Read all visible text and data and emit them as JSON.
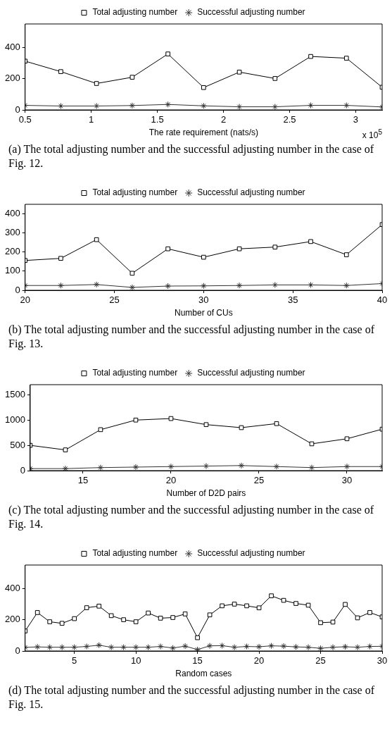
{
  "chart_data": [
    {
      "type": "line",
      "xlabel": "The rate requirement (nats/s)",
      "x": [
        0.5,
        0.77,
        1.04,
        1.31,
        1.58,
        1.85,
        2.12,
        2.39,
        2.66,
        2.93,
        3.2
      ],
      "xlim": [
        0.5,
        3.2
      ],
      "xticks": [
        0.5,
        1,
        1.5,
        2,
        2.5,
        3
      ],
      "ylim": [
        0,
        550
      ],
      "yticks": [
        0,
        200,
        400
      ],
      "grid": false,
      "legend": "top",
      "line_style": "solid",
      "series": [
        {
          "name": "Total adjusting number",
          "color": "#000000",
          "marker": "square",
          "values": [
            312,
            245,
            169,
            209,
            358,
            143,
            242,
            201,
            342,
            331,
            145
          ]
        },
        {
          "name": "Successful adjusting number",
          "color": "#333333",
          "marker": "cross",
          "values": [
            29,
            25,
            25,
            28,
            35,
            26,
            20,
            20,
            29,
            29,
            19
          ]
        }
      ],
      "annotations": [
        "(a) The total adjusting number and the successful adjusting number in the case of Fig. 12.",
        "x 10$^{5}$"
      ]
    },
    {
      "type": "line",
      "xlabel": "Number of CUs",
      "x": [
        20,
        22,
        24,
        26,
        28,
        30,
        32,
        34,
        36,
        38,
        40
      ],
      "xlim": [
        20,
        40
      ],
      "xticks": [
        20,
        25,
        30,
        35,
        40
      ],
      "ylim": [
        0,
        450
      ],
      "yticks": [
        0,
        100,
        200,
        300,
        400
      ],
      "grid": false,
      "legend": "top",
      "line_style": "solid",
      "series": [
        {
          "name": "Total adjusting number",
          "color": "#000000",
          "marker": "square",
          "values": [
            156,
            167,
            265,
            89,
            217,
            173,
            217,
            226,
            255,
            186,
            344
          ]
        },
        {
          "name": "Successful adjusting number",
          "color": "#333333",
          "marker": "cross",
          "values": [
            25,
            25,
            30,
            15,
            22,
            23,
            25,
            28,
            28,
            25,
            35
          ]
        }
      ],
      "annotations": [
        "(b) The total adjusting number and the successful adjusting number in the case of Fig. 13."
      ]
    },
    {
      "type": "line",
      "xlabel": "Number of D2D pairs",
      "x": [
        12,
        14,
        16,
        18,
        20,
        22,
        24,
        26,
        28,
        30,
        32
      ],
      "xlim": [
        12,
        32
      ],
      "xticks": [
        15,
        20,
        25,
        30
      ],
      "ylim": [
        0,
        1700
      ],
      "yticks": [
        0,
        500,
        1000,
        1500
      ],
      "grid": false,
      "legend": "top",
      "line_style": "solid",
      "series": [
        {
          "name": "Total adjusting number",
          "color": "#000000",
          "marker": "square",
          "values": [
            500,
            410,
            810,
            1000,
            1030,
            910,
            850,
            930,
            530,
            630,
            820
          ]
        },
        {
          "name": "Successful adjusting number",
          "color": "#333333",
          "marker": "cross",
          "values": [
            40,
            40,
            60,
            70,
            80,
            90,
            100,
            80,
            60,
            80,
            80
          ]
        }
      ],
      "annotations": [
        "(c) The total adjusting number and the successful adjusting number in the case of Fig. 14."
      ]
    },
    {
      "type": "line",
      "xlabel": "Random cases",
      "x": [
        1,
        2,
        3,
        4,
        5,
        6,
        7,
        8,
        9,
        10,
        11,
        12,
        13,
        14,
        15,
        16,
        17,
        18,
        19,
        20,
        21,
        22,
        23,
        24,
        25,
        26,
        27,
        28,
        29,
        30
      ],
      "xlim": [
        1,
        30
      ],
      "xticks": [
        5,
        10,
        15,
        20,
        25,
        30
      ],
      "ylim": [
        0,
        550
      ],
      "yticks": [
        0,
        200,
        400
      ],
      "grid": false,
      "legend": "top",
      "line_style": "solid",
      "series": [
        {
          "name": "Total adjusting number",
          "color": "#000000",
          "marker": "square",
          "values": [
            128,
            246,
            187,
            177,
            207,
            277,
            287,
            226,
            200,
            187,
            243,
            210,
            214,
            237,
            85,
            231,
            289,
            300,
            289,
            276,
            353,
            324,
            304,
            293,
            181,
            185,
            298,
            212,
            246,
            218
          ]
        },
        {
          "name": "Successful adjusting number",
          "color": "#333333",
          "marker": "cross",
          "values": [
            23,
            26,
            24,
            24,
            24,
            29,
            37,
            24,
            24,
            24,
            24,
            29,
            19,
            31,
            9,
            33,
            34,
            24,
            29,
            27,
            33,
            31,
            26,
            24,
            17,
            24,
            27,
            24,
            29,
            30
          ]
        }
      ],
      "annotations": [
        "(d) The total adjusting number and the successful adjusting number in the case of Fig. 15."
      ]
    }
  ]
}
